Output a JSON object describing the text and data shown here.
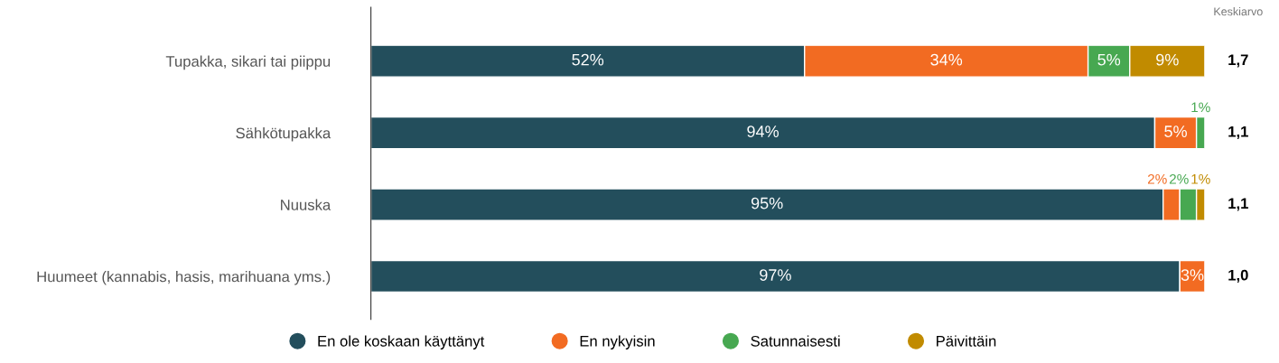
{
  "chart_data": {
    "type": "bar",
    "orientation": "horizontal",
    "stacked": true,
    "legend": "bottom",
    "grid": false,
    "tick_labels": "y",
    "categories": [
      "Tupakka, sikari tai piippu",
      "Sähkötupakka",
      "Nuuska",
      "Huumeet (kannabis, hasis, marihuana yms.)"
    ],
    "series": [
      {
        "name": "En ole koskaan käyttänyt",
        "color": "#234e5c",
        "values": [
          52,
          94,
          95,
          97
        ],
        "value_labels": [
          "52%",
          "94%",
          "95%",
          "97%"
        ]
      },
      {
        "name": "En nykyisin",
        "color": "#f26b22",
        "values": [
          34,
          5,
          2,
          3
        ],
        "value_labels": [
          "34%",
          "5%",
          "2%",
          "3%"
        ]
      },
      {
        "name": "Satunnaisesti",
        "color": "#47a851",
        "values": [
          5,
          1,
          2,
          0
        ],
        "value_labels": [
          "5%",
          "1%",
          "2%",
          null
        ]
      },
      {
        "name": "Päivittäin",
        "color": "#c18b00",
        "values": [
          9,
          0,
          1,
          0
        ],
        "value_labels": [
          "9%",
          null,
          "1%",
          null
        ]
      }
    ],
    "annotations": [
      "Keskiarvo",
      "1,7",
      "1,1",
      "1,1",
      "1,0"
    ]
  }
}
